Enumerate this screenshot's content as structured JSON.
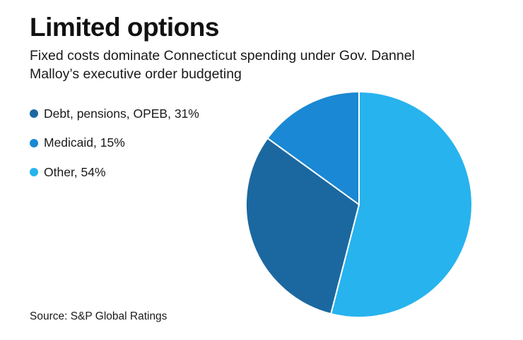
{
  "chart_data": {
    "type": "pie",
    "title": "Limited options",
    "subtitle": "Fixed costs dominate Connecticut spending under Gov. Dannel Malloy’s executive order budgeting",
    "categories": [
      "Debt, pensions, OPEB",
      "Medicaid",
      "Other"
    ],
    "values": [
      31,
      15,
      54
    ],
    "unit": "%",
    "legend_labels": [
      "Debt, pensions, OPEB, 31%",
      "Medicaid, 15%",
      "Other, 54%"
    ],
    "colors": [
      "#1b68a0",
      "#1a88d4",
      "#27b3ee"
    ],
    "legend_position": "left",
    "source": "Source: S&P Global Ratings"
  }
}
